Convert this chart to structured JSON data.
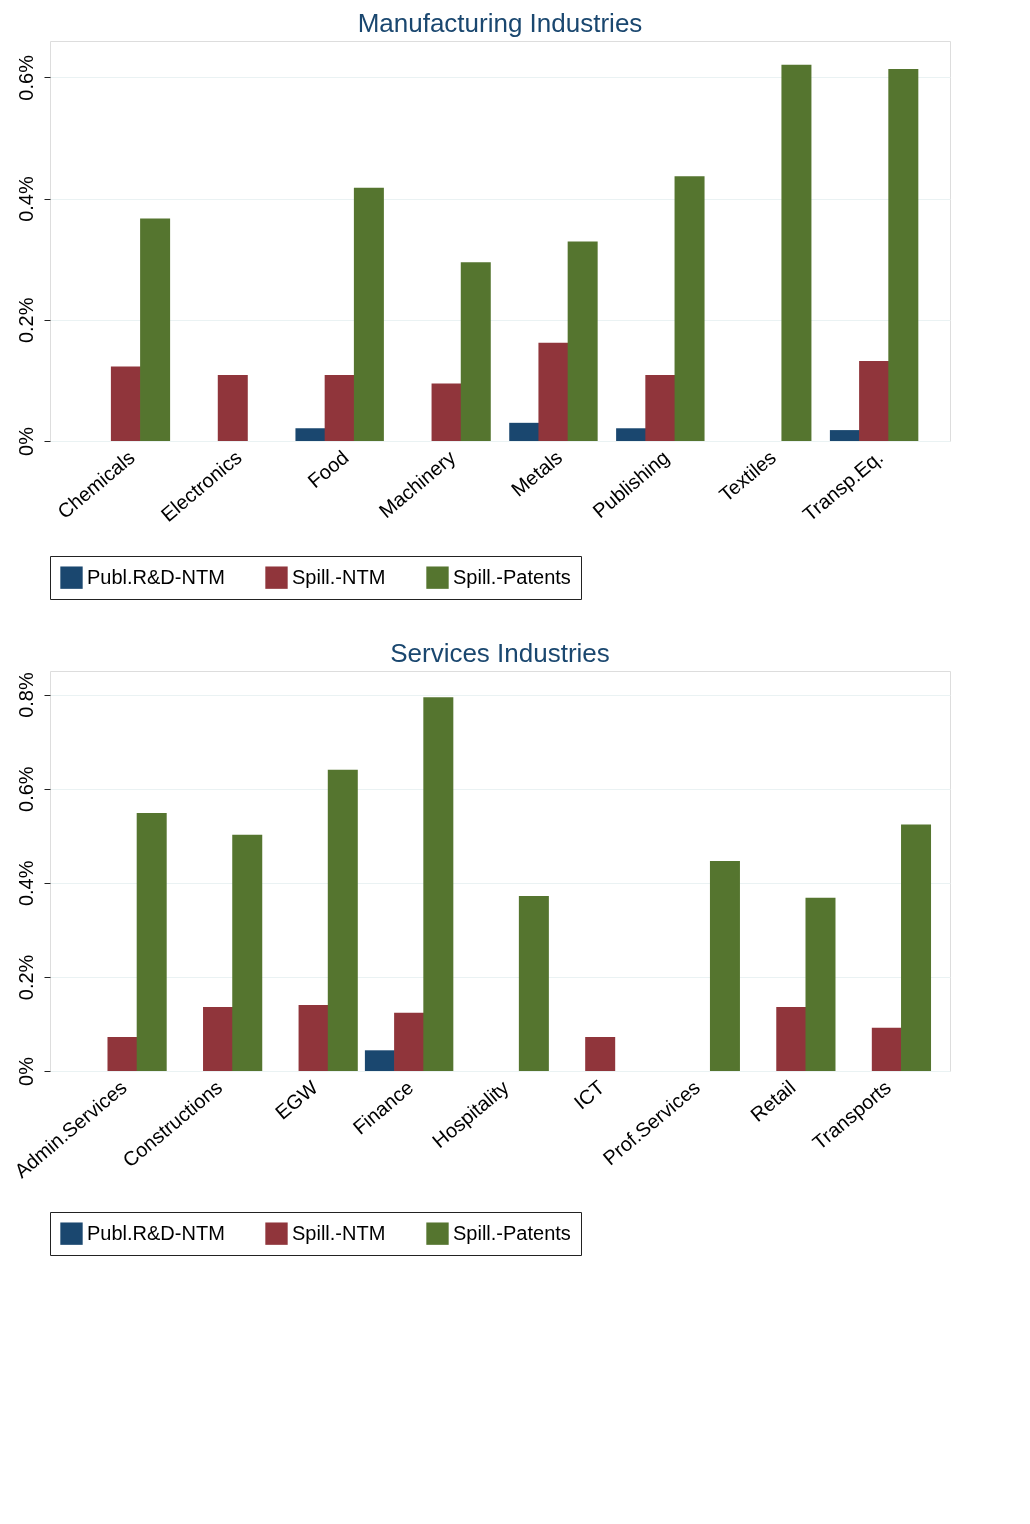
{
  "chart_data": [
    {
      "type": "bar",
      "title": "Manufacturing Industries",
      "categories": [
        "Chemicals",
        "Electronics",
        "Food",
        "Machinery",
        "Metals",
        "Publishing",
        "Textiles",
        "Transp.Eq."
      ],
      "series": [
        {
          "name": "Publ.R&D-NTM",
          "color": "#1a476f",
          "values": [
            null,
            null,
            0.021,
            null,
            0.03,
            0.021,
            null,
            0.018
          ]
        },
        {
          "name": "Spill.-NTM",
          "color": "#90353b",
          "values": [
            0.123,
            0.109,
            0.109,
            0.095,
            0.162,
            0.109,
            null,
            0.132
          ]
        },
        {
          "name": "Spill.-Patents",
          "color": "#55752f",
          "values": [
            0.367,
            null,
            0.418,
            0.295,
            0.329,
            0.437,
            0.621,
            0.614
          ]
        }
      ],
      "ylim": [
        0,
        0.66
      ],
      "yticks": [
        {
          "value": 0,
          "label": "0%"
        },
        {
          "value": 0.2,
          "label": "0.2%"
        },
        {
          "value": 0.4,
          "label": "0.4%"
        },
        {
          "value": 0.6,
          "label": "0.6%"
        }
      ],
      "grid": "y",
      "legend": "bottom"
    },
    {
      "type": "bar",
      "title": "Services Industries",
      "categories": [
        "Admin.Services",
        "Constructions",
        "EGW",
        "Finance",
        "Hospitality",
        "ICT",
        "Prof.Services",
        "Retail",
        "Transports"
      ],
      "series": [
        {
          "name": "Publ.R&D-NTM",
          "color": "#1a476f",
          "values": [
            null,
            null,
            null,
            0.044,
            null,
            null,
            null,
            null,
            null
          ]
        },
        {
          "name": "Spill.-NTM",
          "color": "#90353b",
          "values": [
            0.072,
            0.136,
            0.14,
            0.124,
            null,
            0.072,
            null,
            0.136,
            0.092
          ]
        },
        {
          "name": "Spill.-Patents",
          "color": "#55752f",
          "values": [
            0.548,
            0.502,
            0.64,
            0.794,
            0.372,
            null,
            0.446,
            0.368,
            0.524
          ]
        }
      ],
      "ylim": [
        0,
        0.85
      ],
      "yticks": [
        {
          "value": 0,
          "label": "0%"
        },
        {
          "value": 0.2,
          "label": "0.2%"
        },
        {
          "value": 0.4,
          "label": "0.4%"
        },
        {
          "value": 0.6,
          "label": "0.6%"
        },
        {
          "value": 0.8,
          "label": "0.8%"
        }
      ],
      "grid": "y",
      "legend": "bottom"
    }
  ]
}
